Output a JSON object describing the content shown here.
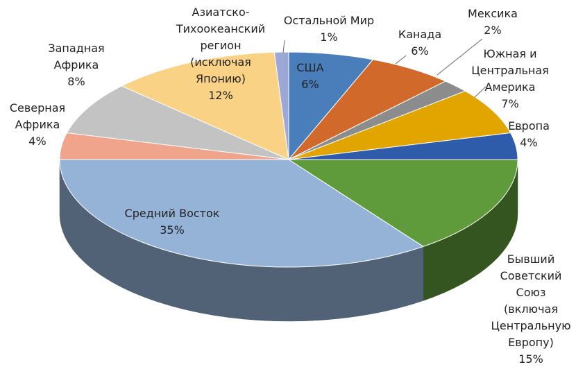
{
  "chart_data": {
    "type": "pie3d",
    "categories": [
      "США",
      "Канада",
      "Мексика",
      "Южная и\nЦентральная\nАмерика",
      "Европа",
      "Бывший\nСоветский\nСоюз\n(включая\nЦентральную\nЕвропу)",
      "Средний Восток",
      "Северная\nАфрика",
      "Западная\nАфрика",
      "Азиатско-\nТихоокеанский\nрегион\n(исключая\nЯпонию)",
      "Остальной Мир"
    ],
    "values": [
      6,
      6,
      2,
      7,
      4,
      15,
      35,
      4,
      8,
      12,
      1
    ],
    "value_labels": [
      "6%",
      "6%",
      "2%",
      "7%",
      "4%",
      "15%",
      "35%",
      "4%",
      "8%",
      "12%",
      "1%"
    ],
    "colors": [
      "#4a7ebb",
      "#d0692a",
      "#8c8c8c",
      "#e2a500",
      "#2f5caa",
      "#5f9a3b",
      "#95b3d7",
      "#f0a48c",
      "#c3c3c3",
      "#f9d285",
      "#9ea8d6"
    ]
  }
}
